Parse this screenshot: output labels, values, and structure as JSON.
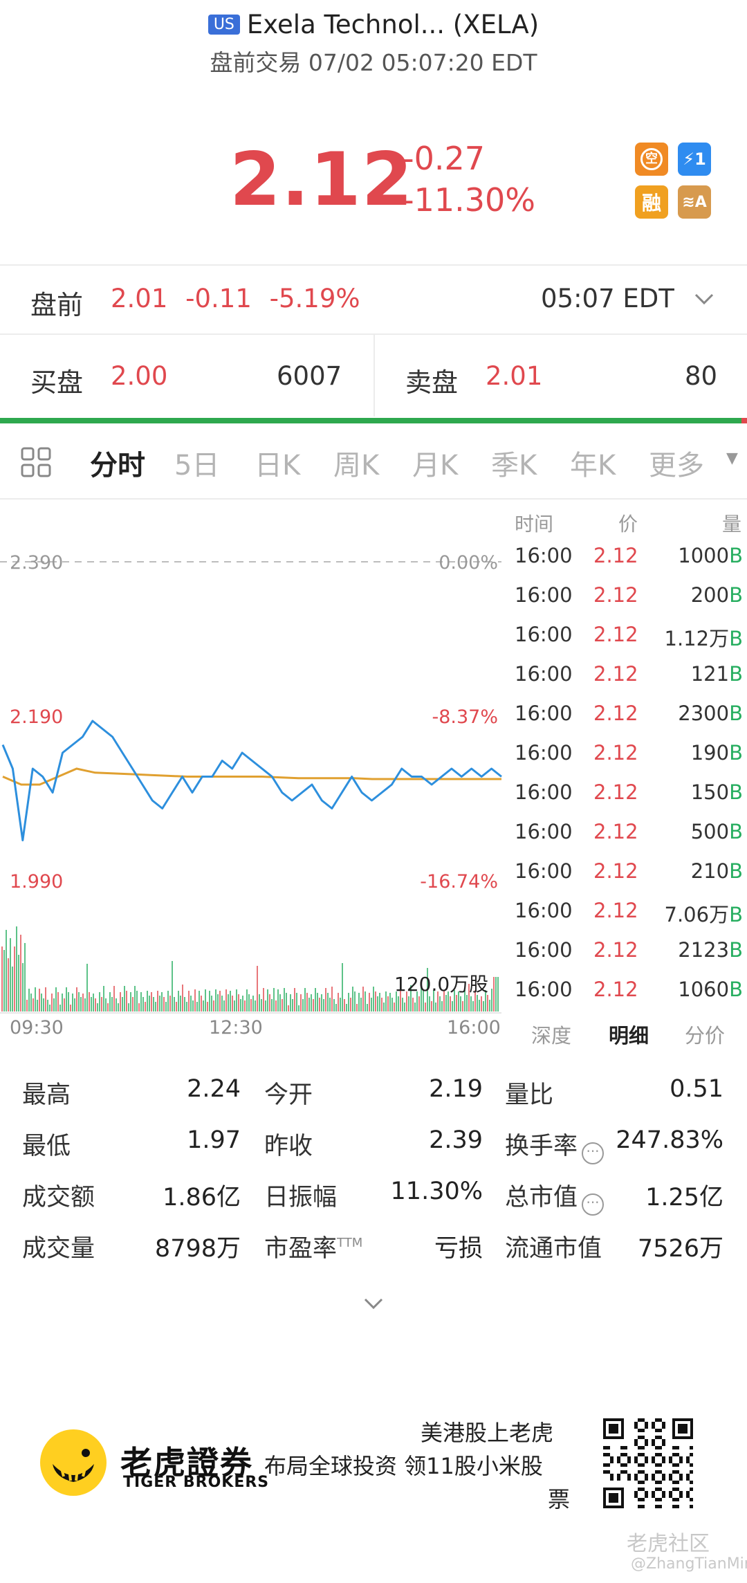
{
  "header": {
    "market_badge": "US",
    "title": "Exela Technol... (XELA)",
    "subtitle": "盘前交易 07/02 05:07:20 EDT"
  },
  "quote": {
    "price": "2.12",
    "change": "-0.27",
    "change_pct": "-11.30%",
    "badges": [
      {
        "name": "short-sell-icon",
        "label": "空",
        "color": "#f08a24"
      },
      {
        "name": "level1-icon",
        "label": "⚡1",
        "color": "#2f8cf0"
      },
      {
        "name": "margin-icon",
        "label": "融",
        "color": "#f0a020"
      },
      {
        "name": "layers-a-icon",
        "label": "≋A",
        "color": "#d79a4e"
      }
    ]
  },
  "premarket": {
    "label": "盘前",
    "values": "2.01  -0.11  -5.19%",
    "time": "05:07 EDT"
  },
  "bidask": {
    "bid_label": "买盘",
    "bid_price": "2.00",
    "bid_size": "6007",
    "ask_label": "卖盘",
    "ask_price": "2.01",
    "ask_size": "80"
  },
  "tabs": [
    "分时",
    "5日",
    "日K",
    "周K",
    "月K",
    "季K",
    "年K",
    "更多"
  ],
  "active_tab": "分时",
  "chart_data": {
    "type": "line",
    "x_ticks": [
      "09:30",
      "12:30",
      "16:00"
    ],
    "y_left_labels": [
      "2.390",
      "2.190",
      "1.990"
    ],
    "y_right_labels": [
      "0.00%",
      "-8.37%",
      "-16.74%"
    ],
    "volume_label": "120.0万股",
    "series": [
      {
        "values": [
          2.16,
          2.13,
          2.04,
          2.13,
          2.12,
          2.1,
          2.15,
          2.16,
          2.17,
          2.19,
          2.18,
          2.17,
          2.15,
          2.13,
          2.11,
          2.09,
          2.08,
          2.1,
          2.12,
          2.1,
          2.12,
          2.12,
          2.14,
          2.13,
          2.15,
          2.14,
          2.13,
          2.12,
          2.1,
          2.09,
          2.1,
          2.11,
          2.09,
          2.08,
          2.1,
          2.12,
          2.1,
          2.09,
          2.1,
          2.11,
          2.13,
          2.12,
          2.12,
          2.11,
          2.12,
          2.13,
          2.12,
          2.13,
          2.12,
          2.13,
          2.12
        ]
      },
      {
        "values": [
          2.12,
          2.11,
          2.11,
          2.12,
          2.13,
          2.125,
          2.124,
          2.123,
          2.122,
          2.121,
          2.12,
          2.12,
          2.12,
          2.12,
          2.12,
          2.119,
          2.118,
          2.118,
          2.118,
          2.118,
          2.117,
          2.117,
          2.117,
          2.117,
          2.117,
          2.117,
          2.117,
          2.117
        ]
      }
    ],
    "ylim": [
      1.99,
      2.39
    ]
  },
  "trades": {
    "headers": [
      "时间",
      "价",
      "量"
    ],
    "rows": [
      {
        "time": "16:00",
        "price": "2.12",
        "vol": "1000",
        "side": "B"
      },
      {
        "time": "16:00",
        "price": "2.12",
        "vol": "200",
        "side": "B"
      },
      {
        "time": "16:00",
        "price": "2.12",
        "vol": "1.12万",
        "side": "B"
      },
      {
        "time": "16:00",
        "price": "2.12",
        "vol": "121",
        "side": "B"
      },
      {
        "time": "16:00",
        "price": "2.12",
        "vol": "2300",
        "side": "B"
      },
      {
        "time": "16:00",
        "price": "2.12",
        "vol": "190",
        "side": "B"
      },
      {
        "time": "16:00",
        "price": "2.12",
        "vol": "150",
        "side": "B"
      },
      {
        "time": "16:00",
        "price": "2.12",
        "vol": "500",
        "side": "B"
      },
      {
        "time": "16:00",
        "price": "2.12",
        "vol": "210",
        "side": "B"
      },
      {
        "time": "16:00",
        "price": "2.12",
        "vol": "7.06万",
        "side": "B"
      },
      {
        "time": "16:00",
        "price": "2.12",
        "vol": "2123",
        "side": "B"
      },
      {
        "time": "16:00",
        "price": "2.12",
        "vol": "1060",
        "side": "B"
      }
    ],
    "tabs": [
      "深度",
      "明细",
      "分价"
    ],
    "active_tab": "明细"
  },
  "stats": {
    "high_label": "最高",
    "high": "2.24",
    "open_label": "今开",
    "open": "2.19",
    "vol_ratio_label": "量比",
    "vol_ratio": "0.51",
    "low_label": "最低",
    "low": "1.97",
    "prev_close_label": "昨收",
    "prev_close": "2.39",
    "turnover_rate_label": "换手率",
    "turnover_rate": "247.83%",
    "amount_label": "成交额",
    "amount": "1.86亿",
    "amplitude_label": "日振幅",
    "amplitude": "11.30%",
    "market_cap_label": "总市值",
    "market_cap": "1.25亿",
    "volume_label": "成交量",
    "volume": "8798万",
    "pe_label": "市盈率",
    "pe_suffix": "TTM",
    "pe": "亏损",
    "float_cap_label": "流通市值",
    "float_cap": "7526万"
  },
  "footer": {
    "brand_cn": "老虎證券",
    "brand_en": "TIGER BROKERS",
    "slogan_line1": "美港股上老虎",
    "slogan_line2": "布局全球投资 领11股小米股",
    "slogan_line3": "票",
    "community": "老虎社区",
    "watermark": "@ZhangTianMin"
  },
  "colors": {
    "up": "#27ae60",
    "down": "#e0484e",
    "price_line": "#2d8fdd",
    "avg_line": "#e0a030"
  }
}
